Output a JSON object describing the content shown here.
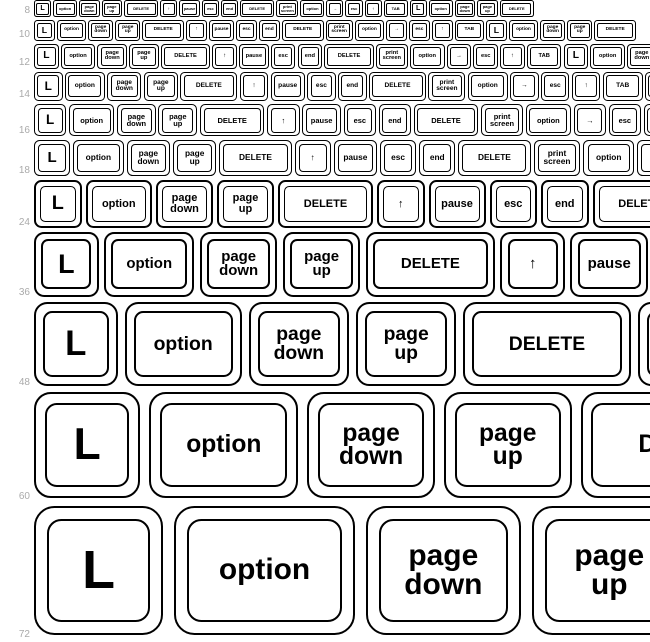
{
  "background": "#ffffff",
  "label_color": "#aaaaaa",
  "key_border": "#000000",
  "keys": [
    "L",
    "option",
    "page down",
    "page up",
    "DELETE",
    "↑",
    "pause",
    "esc",
    "end",
    "DELETE",
    "print screen",
    "option",
    "→",
    "esc",
    "↑",
    "TAB",
    "L",
    "option",
    "page down",
    "page up",
    "DELETE"
  ],
  "key_rel_widths": [
    1,
    1.4,
    1.2,
    1.2,
    2,
    1,
    1.2,
    1,
    1,
    2,
    1.3,
    1.4,
    1,
    1,
    1,
    1.4,
    1,
    1.4,
    1.2,
    1.2,
    2
  ],
  "rows": [
    {
      "size": 8,
      "height": 18
    },
    {
      "size": 10,
      "height": 22
    },
    {
      "size": 12,
      "height": 26
    },
    {
      "size": 14,
      "height": 30
    },
    {
      "size": 16,
      "height": 34
    },
    {
      "size": 18,
      "height": 38
    },
    {
      "size": 24,
      "height": 50
    },
    {
      "size": 36,
      "height": 68
    },
    {
      "size": 48,
      "height": 88
    },
    {
      "size": 60,
      "height": 112
    },
    {
      "size": 72,
      "height": 136
    }
  ]
}
